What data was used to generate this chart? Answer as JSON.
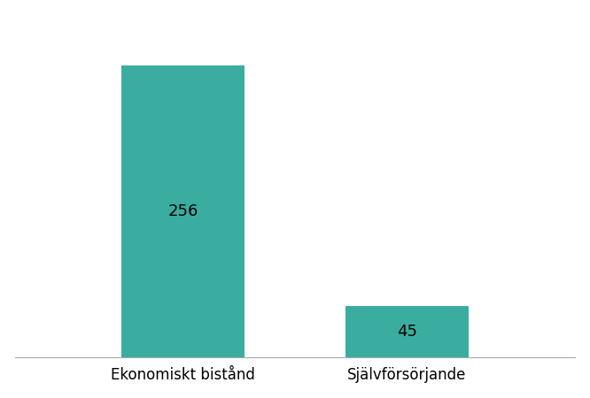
{
  "categories": [
    "Ekonomiskt bistånd",
    "Självförsörjande"
  ],
  "values": [
    256,
    45
  ],
  "bar_color": "#3aada0",
  "background_color": "#ffffff",
  "label_fontsize": 13,
  "tick_fontsize": 12,
  "bar_width": 0.55,
  "ylim": [
    0,
    300
  ],
  "value_labels": [
    "256",
    "45"
  ],
  "figsize": [
    6.66,
    4.5
  ],
  "dpi": 100
}
